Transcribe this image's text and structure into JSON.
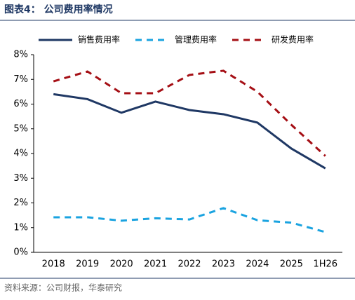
{
  "chart_data": {
    "type": "line",
    "title": "图表4： 公司费用率情况",
    "source": "资料来源：公司财报，华泰研究",
    "categories": [
      "2018",
      "2019",
      "2020",
      "2021",
      "2022",
      "2023",
      "2024",
      "2025",
      "1H26"
    ],
    "series": [
      {
        "name": "销售费用率",
        "color": "#1f3864",
        "dash": "solid",
        "values": [
          6.4,
          6.2,
          5.65,
          6.1,
          5.76,
          5.59,
          5.25,
          4.2,
          3.4
        ]
      },
      {
        "name": "管理费用率",
        "color": "#1aa3e0",
        "dash": "dashed",
        "values": [
          1.42,
          1.42,
          1.28,
          1.38,
          1.33,
          1.79,
          1.3,
          1.2,
          0.82
        ]
      },
      {
        "name": "研发费用率",
        "color": "#a50f15",
        "dash": "dashed",
        "values": [
          6.92,
          7.32,
          6.44,
          6.44,
          7.18,
          7.35,
          6.5,
          5.16,
          3.9
        ]
      }
    ],
    "ylim": [
      0,
      8
    ],
    "yticks": [
      {
        "value": 0,
        "label": "0%"
      },
      {
        "value": 1,
        "label": "1%"
      },
      {
        "value": 2,
        "label": "2%"
      },
      {
        "value": 3,
        "label": "3%"
      },
      {
        "value": 4,
        "label": "4%"
      },
      {
        "value": 5,
        "label": "5%"
      },
      {
        "value": 6,
        "label": "6%"
      },
      {
        "value": 7,
        "label": "7%"
      },
      {
        "value": 8,
        "label": "8%"
      }
    ],
    "grid": false
  }
}
